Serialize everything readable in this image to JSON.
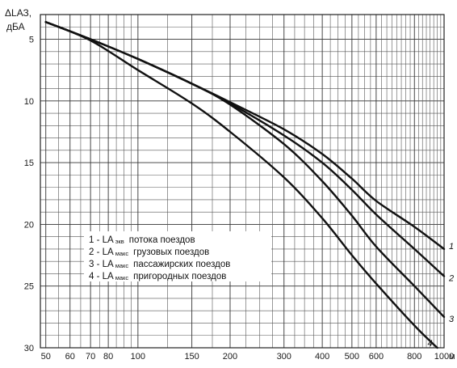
{
  "chart_data": {
    "type": "line",
    "x_scale": "log",
    "y_direction": "down",
    "xlim": [
      48,
      1000
    ],
    "ylim": [
      3,
      30
    ],
    "ylabel": "ΔLАЗ, дБА",
    "x_unit": "м",
    "x_ticks": [
      50,
      60,
      70,
      80,
      100,
      150,
      200,
      300,
      400,
      500,
      600,
      800,
      1000
    ],
    "x_tick_labels": [
      "50",
      "60",
      "70",
      "80",
      "100",
      "150",
      "200",
      "300",
      "400",
      "500",
      "600",
      "800",
      "1000"
    ],
    "y_ticks": [
      5,
      10,
      15,
      20,
      25,
      30
    ],
    "y_tick_labels": [
      "5",
      "10",
      "15",
      "20",
      "25",
      "30"
    ],
    "grid": true,
    "legend_position": "lower-left",
    "series": [
      {
        "name": "1 - LА экв потока поездов",
        "number": "1",
        "legend": {
          "num": "1",
          "main": "LА",
          "sub": "экв",
          "desc": "потока поездов"
        },
        "x": [
          50,
          70,
          100,
          150,
          200,
          300,
          400,
          500,
          600,
          800,
          1000
        ],
        "y": [
          3.6,
          5.0,
          6.6,
          8.6,
          10.1,
          12.3,
          14.3,
          16.3,
          18.1,
          20.2,
          22.0
        ]
      },
      {
        "name": "2 - LА макс грузовых поездов",
        "number": "2",
        "legend": {
          "num": "2",
          "main": "LA",
          "sub": "макс",
          "desc": "грузовых поездов"
        },
        "x": [
          50,
          70,
          100,
          150,
          200,
          300,
          400,
          500,
          600,
          800,
          1000
        ],
        "y": [
          3.6,
          5.0,
          6.6,
          8.6,
          10.2,
          12.8,
          15.0,
          17.2,
          19.2,
          22.0,
          24.2
        ]
      },
      {
        "name": "3 - LА макс пассажирских поездов",
        "number": "3",
        "legend": {
          "num": "3",
          "main": "LA",
          "sub": "макс",
          "desc": "пассажирских поездов"
        },
        "x": [
          50,
          70,
          100,
          150,
          200,
          300,
          400,
          500,
          600,
          800,
          1000
        ],
        "y": [
          3.6,
          5.0,
          6.6,
          8.6,
          10.3,
          13.5,
          16.5,
          19.3,
          21.8,
          25.0,
          27.5
        ]
      },
      {
        "name": "4 - LА макс пригородных поездов",
        "number": "4",
        "legend": {
          "num": "4",
          "main": "LA",
          "sub": "макс",
          "desc": "пригородных поездов"
        },
        "x": [
          50,
          70,
          100,
          150,
          200,
          300,
          400,
          500,
          600,
          800,
          950
        ],
        "y": [
          3.6,
          5.1,
          7.5,
          10.2,
          12.5,
          16.2,
          19.5,
          22.5,
          24.8,
          28.2,
          30.0
        ]
      }
    ]
  },
  "axis_title_line1": "ΔLАЗ,",
  "axis_title_line2": "дБА",
  "x_unit_label": "м"
}
